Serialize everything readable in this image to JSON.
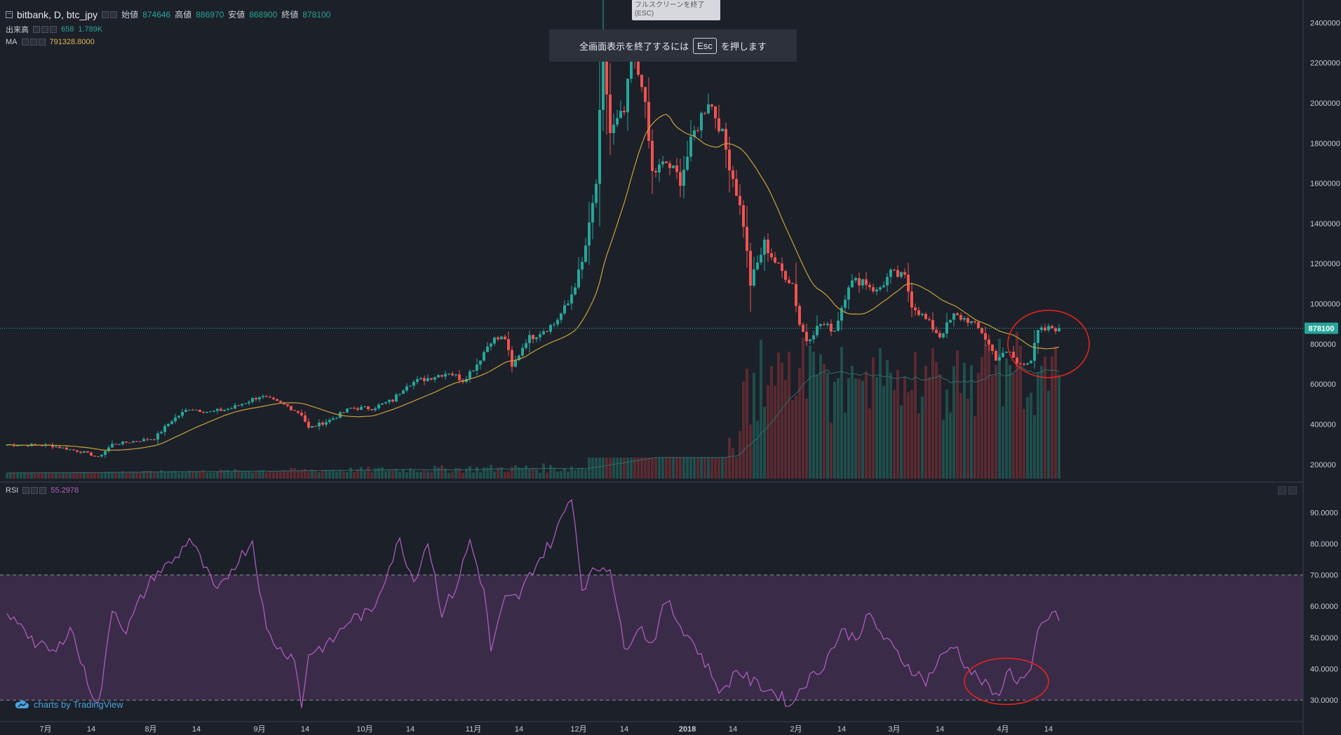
{
  "header": {
    "symbol": "bitbank, D, btc_jpy",
    "open_label": "始値",
    "open_value": "874646",
    "high_label": "高値",
    "high_value": "886970",
    "low_label": "安値",
    "low_value": "868900",
    "close_label": "終値",
    "close_value": "878100",
    "volume_label": "出来高",
    "volume_value_1": "658",
    "volume_value_2": "1.789K",
    "ma_label": "MA",
    "ma_value": "791328.8000",
    "rsi_label": "RSI",
    "rsi_value": "55.2978"
  },
  "fullscreen": {
    "tooltip": "フルスクリーンを終了\n(ESC)",
    "toast_before": "全画面表示を終了するには",
    "toast_key": "Esc",
    "toast_after": "を押します"
  },
  "brand": {
    "text": "charts by TradingView",
    "icon": "tradingview-cloud-icon"
  },
  "colors": {
    "background": "#1c2029",
    "up": "#26a69a",
    "down": "#ef5350",
    "ma": "#c9a23a",
    "rsi": "#b65fc4",
    "rsi_band": "#3a2c48",
    "annotation": "#e3241f",
    "grid_text": "#c8ccd4",
    "price_line": "#26a69a"
  },
  "chart_data": [
    {
      "type": "candlestick",
      "title": "bitbank, D, btc_jpy",
      "y_ticks": [
        "2400000",
        "2200000",
        "2000000",
        "1800000",
        "1600000",
        "1400000",
        "1200000",
        "1000000",
        "800000",
        "600000",
        "400000",
        "200000"
      ],
      "ylim": [
        140000,
        2450000
      ],
      "last_price": "878100",
      "x_ticks": [
        {
          "label": "7月",
          "idx": 11
        },
        {
          "label": "14",
          "idx": 24
        },
        {
          "label": "8月",
          "idx": 41
        },
        {
          "label": "14",
          "idx": 54
        },
        {
          "label": "9月",
          "idx": 72
        },
        {
          "label": "14",
          "idx": 85
        },
        {
          "label": "10月",
          "idx": 102
        },
        {
          "label": "14",
          "idx": 115
        },
        {
          "label": "11月",
          "idx": 133
        },
        {
          "label": "14",
          "idx": 146
        },
        {
          "label": "12月",
          "idx": 163
        },
        {
          "label": "14",
          "idx": 176
        },
        {
          "label": "2018",
          "idx": 194
        },
        {
          "label": "14",
          "idx": 207
        },
        {
          "label": "2月",
          "idx": 225
        },
        {
          "label": "14",
          "idx": 238
        },
        {
          "label": "3月",
          "idx": 253
        },
        {
          "label": "14",
          "idx": 266
        },
        {
          "label": "4月",
          "idx": 284
        },
        {
          "label": "14",
          "idx": 297
        }
      ],
      "close_anchors": [
        [
          0,
          298000
        ],
        [
          12,
          295000
        ],
        [
          22,
          260000
        ],
        [
          26,
          235000
        ],
        [
          30,
          300000
        ],
        [
          42,
          330000
        ],
        [
          47,
          420000
        ],
        [
          52,
          480000
        ],
        [
          58,
          460000
        ],
        [
          64,
          480000
        ],
        [
          72,
          540000
        ],
        [
          80,
          490000
        ],
        [
          84,
          450000
        ],
        [
          86,
          380000
        ],
        [
          92,
          420000
        ],
        [
          98,
          480000
        ],
        [
          104,
          480000
        ],
        [
          110,
          520000
        ],
        [
          114,
          600000
        ],
        [
          120,
          630000
        ],
        [
          126,
          660000
        ],
        [
          130,
          620000
        ],
        [
          134,
          700000
        ],
        [
          138,
          820000
        ],
        [
          142,
          830000
        ],
        [
          144,
          680000
        ],
        [
          148,
          820000
        ],
        [
          156,
          900000
        ],
        [
          160,
          1000000
        ],
        [
          164,
          1200000
        ],
        [
          166,
          1380000
        ],
        [
          168,
          1600000
        ],
        [
          170,
          2250000
        ],
        [
          172,
          1850000
        ],
        [
          176,
          1950000
        ],
        [
          178,
          2200000
        ],
        [
          181,
          2120000
        ],
        [
          184,
          1650000
        ],
        [
          188,
          1700000
        ],
        [
          192,
          1620000
        ],
        [
          196,
          1850000
        ],
        [
          200,
          2020000
        ],
        [
          203,
          1900000
        ],
        [
          206,
          1700000
        ],
        [
          208,
          1560000
        ],
        [
          210,
          1400000
        ],
        [
          212,
          1100000
        ],
        [
          216,
          1300000
        ],
        [
          220,
          1180000
        ],
        [
          224,
          1100000
        ],
        [
          226,
          900000
        ],
        [
          228,
          820000
        ],
        [
          232,
          900000
        ],
        [
          236,
          870000
        ],
        [
          240,
          1100000
        ],
        [
          244,
          1120000
        ],
        [
          248,
          1060000
        ],
        [
          252,
          1150000
        ],
        [
          256,
          1130000
        ],
        [
          258,
          1000000
        ],
        [
          262,
          920000
        ],
        [
          266,
          840000
        ],
        [
          270,
          940000
        ],
        [
          274,
          920000
        ],
        [
          278,
          860000
        ],
        [
          282,
          730000
        ],
        [
          286,
          760000
        ],
        [
          288,
          700000
        ],
        [
          292,
          720000
        ],
        [
          294,
          860000
        ],
        [
          298,
          880000
        ],
        [
          300,
          878100
        ]
      ],
      "ma_period": 20,
      "ma_last": "791328.8000"
    },
    {
      "type": "bar",
      "name": "出来高",
      "values_last": [
        "658",
        "1.789K"
      ]
    },
    {
      "type": "line",
      "name": "RSI",
      "y_ticks": [
        "90.0000",
        "80.0000",
        "70.0000",
        "60.0000",
        "50.0000",
        "40.0000",
        "30.0000"
      ],
      "ylim": [
        24,
        97
      ],
      "band": [
        30,
        70
      ],
      "last": "55.2978",
      "anchors": [
        [
          0,
          56
        ],
        [
          4,
          55
        ],
        [
          8,
          48
        ],
        [
          14,
          45
        ],
        [
          18,
          54
        ],
        [
          22,
          39
        ],
        [
          26,
          28
        ],
        [
          28,
          42
        ],
        [
          30,
          60
        ],
        [
          34,
          52
        ],
        [
          38,
          62
        ],
        [
          42,
          70
        ],
        [
          48,
          75
        ],
        [
          52,
          82
        ],
        [
          56,
          73
        ],
        [
          60,
          64
        ],
        [
          64,
          72
        ],
        [
          70,
          81
        ],
        [
          74,
          52
        ],
        [
          78,
          46
        ],
        [
          82,
          44
        ],
        [
          84,
          27
        ],
        [
          86,
          45
        ],
        [
          92,
          48
        ],
        [
          98,
          56
        ],
        [
          104,
          58
        ],
        [
          108,
          70
        ],
        [
          112,
          81
        ],
        [
          116,
          68
        ],
        [
          120,
          81
        ],
        [
          124,
          58
        ],
        [
          128,
          66
        ],
        [
          132,
          81
        ],
        [
          136,
          65
        ],
        [
          138,
          46
        ],
        [
          142,
          62
        ],
        [
          146,
          63
        ],
        [
          150,
          72
        ],
        [
          156,
          82
        ],
        [
          161,
          96
        ],
        [
          164,
          66
        ],
        [
          168,
          72
        ],
        [
          172,
          73
        ],
        [
          176,
          46
        ],
        [
          180,
          54
        ],
        [
          184,
          48
        ],
        [
          188,
          62
        ],
        [
          192,
          54
        ],
        [
          196,
          48
        ],
        [
          200,
          40
        ],
        [
          204,
          32
        ],
        [
          208,
          40
        ],
        [
          212,
          36
        ],
        [
          218,
          33
        ],
        [
          222,
          30
        ],
        [
          224,
          28
        ],
        [
          226,
          34
        ],
        [
          232,
          40
        ],
        [
          238,
          52
        ],
        [
          242,
          50
        ],
        [
          246,
          57
        ],
        [
          250,
          50
        ],
        [
          256,
          42
        ],
        [
          262,
          36
        ],
        [
          266,
          43
        ],
        [
          270,
          48
        ],
        [
          274,
          40
        ],
        [
          278,
          36
        ],
        [
          282,
          31
        ],
        [
          286,
          40
        ],
        [
          288,
          36
        ],
        [
          292,
          38
        ],
        [
          294,
          52
        ],
        [
          298,
          58
        ],
        [
          300,
          55.3
        ]
      ]
    }
  ]
}
